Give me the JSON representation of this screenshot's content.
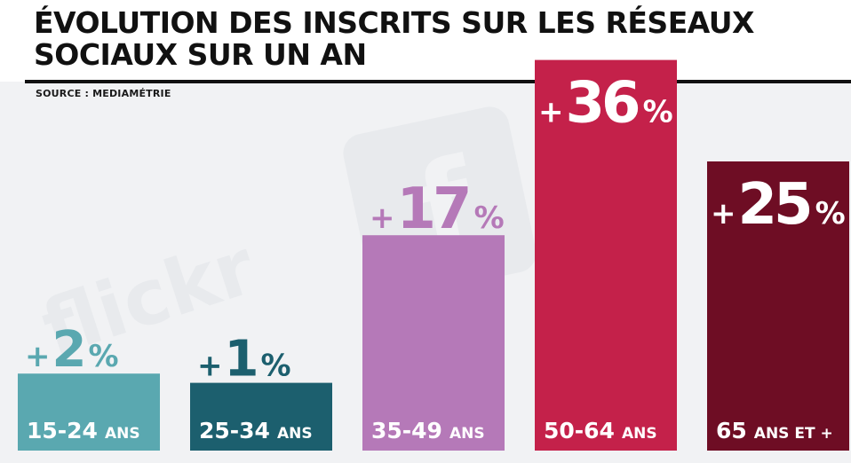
{
  "header": {
    "title": "ÉVOLUTION DES INSCRITS SUR LES RÉSEAUX SOCIAUX SUR UN AN",
    "source": "SOURCE : MEDIAMÉTRIE"
  },
  "colors": {
    "background": "#f1f2f4",
    "bars": [
      "#5aa8b0",
      "#1c5f6e",
      "#b579b8",
      "#c4214a",
      "#6e0d24"
    ],
    "value_labels": [
      "#5aa8b0",
      "#1c5f6e",
      "#b579b8",
      "#ffffff",
      "#ffffff"
    ],
    "category_text": "#ffffff"
  },
  "watermark_icons": [
    "flickr-logo-icon",
    "facebook-logo-icon"
  ],
  "chart_data": {
    "type": "bar",
    "title": "ÉVOLUTION DES INSCRITS SUR LES RÉSEAUX SOCIAUX SUR UN AN",
    "categories": [
      {
        "num": "15-24",
        "unit": "ANS"
      },
      {
        "num": "25-34",
        "unit": "ANS"
      },
      {
        "num": "35-49",
        "unit": "ANS"
      },
      {
        "num": "50-64",
        "unit": "ANS"
      },
      {
        "num": "65",
        "unit": "ANS ET +"
      }
    ],
    "values": [
      2,
      1,
      17,
      36,
      25
    ],
    "value_labels": [
      {
        "sign": "+",
        "number": "2",
        "unit": "%"
      },
      {
        "sign": "+",
        "number": "1",
        "unit": "%"
      },
      {
        "sign": "+",
        "number": "17",
        "unit": "%"
      },
      {
        "sign": "+",
        "number": "36",
        "unit": "%"
      },
      {
        "sign": "+",
        "number": "25",
        "unit": "%"
      }
    ],
    "ylim": [
      0,
      36
    ],
    "grid": false,
    "legend": "none"
  }
}
